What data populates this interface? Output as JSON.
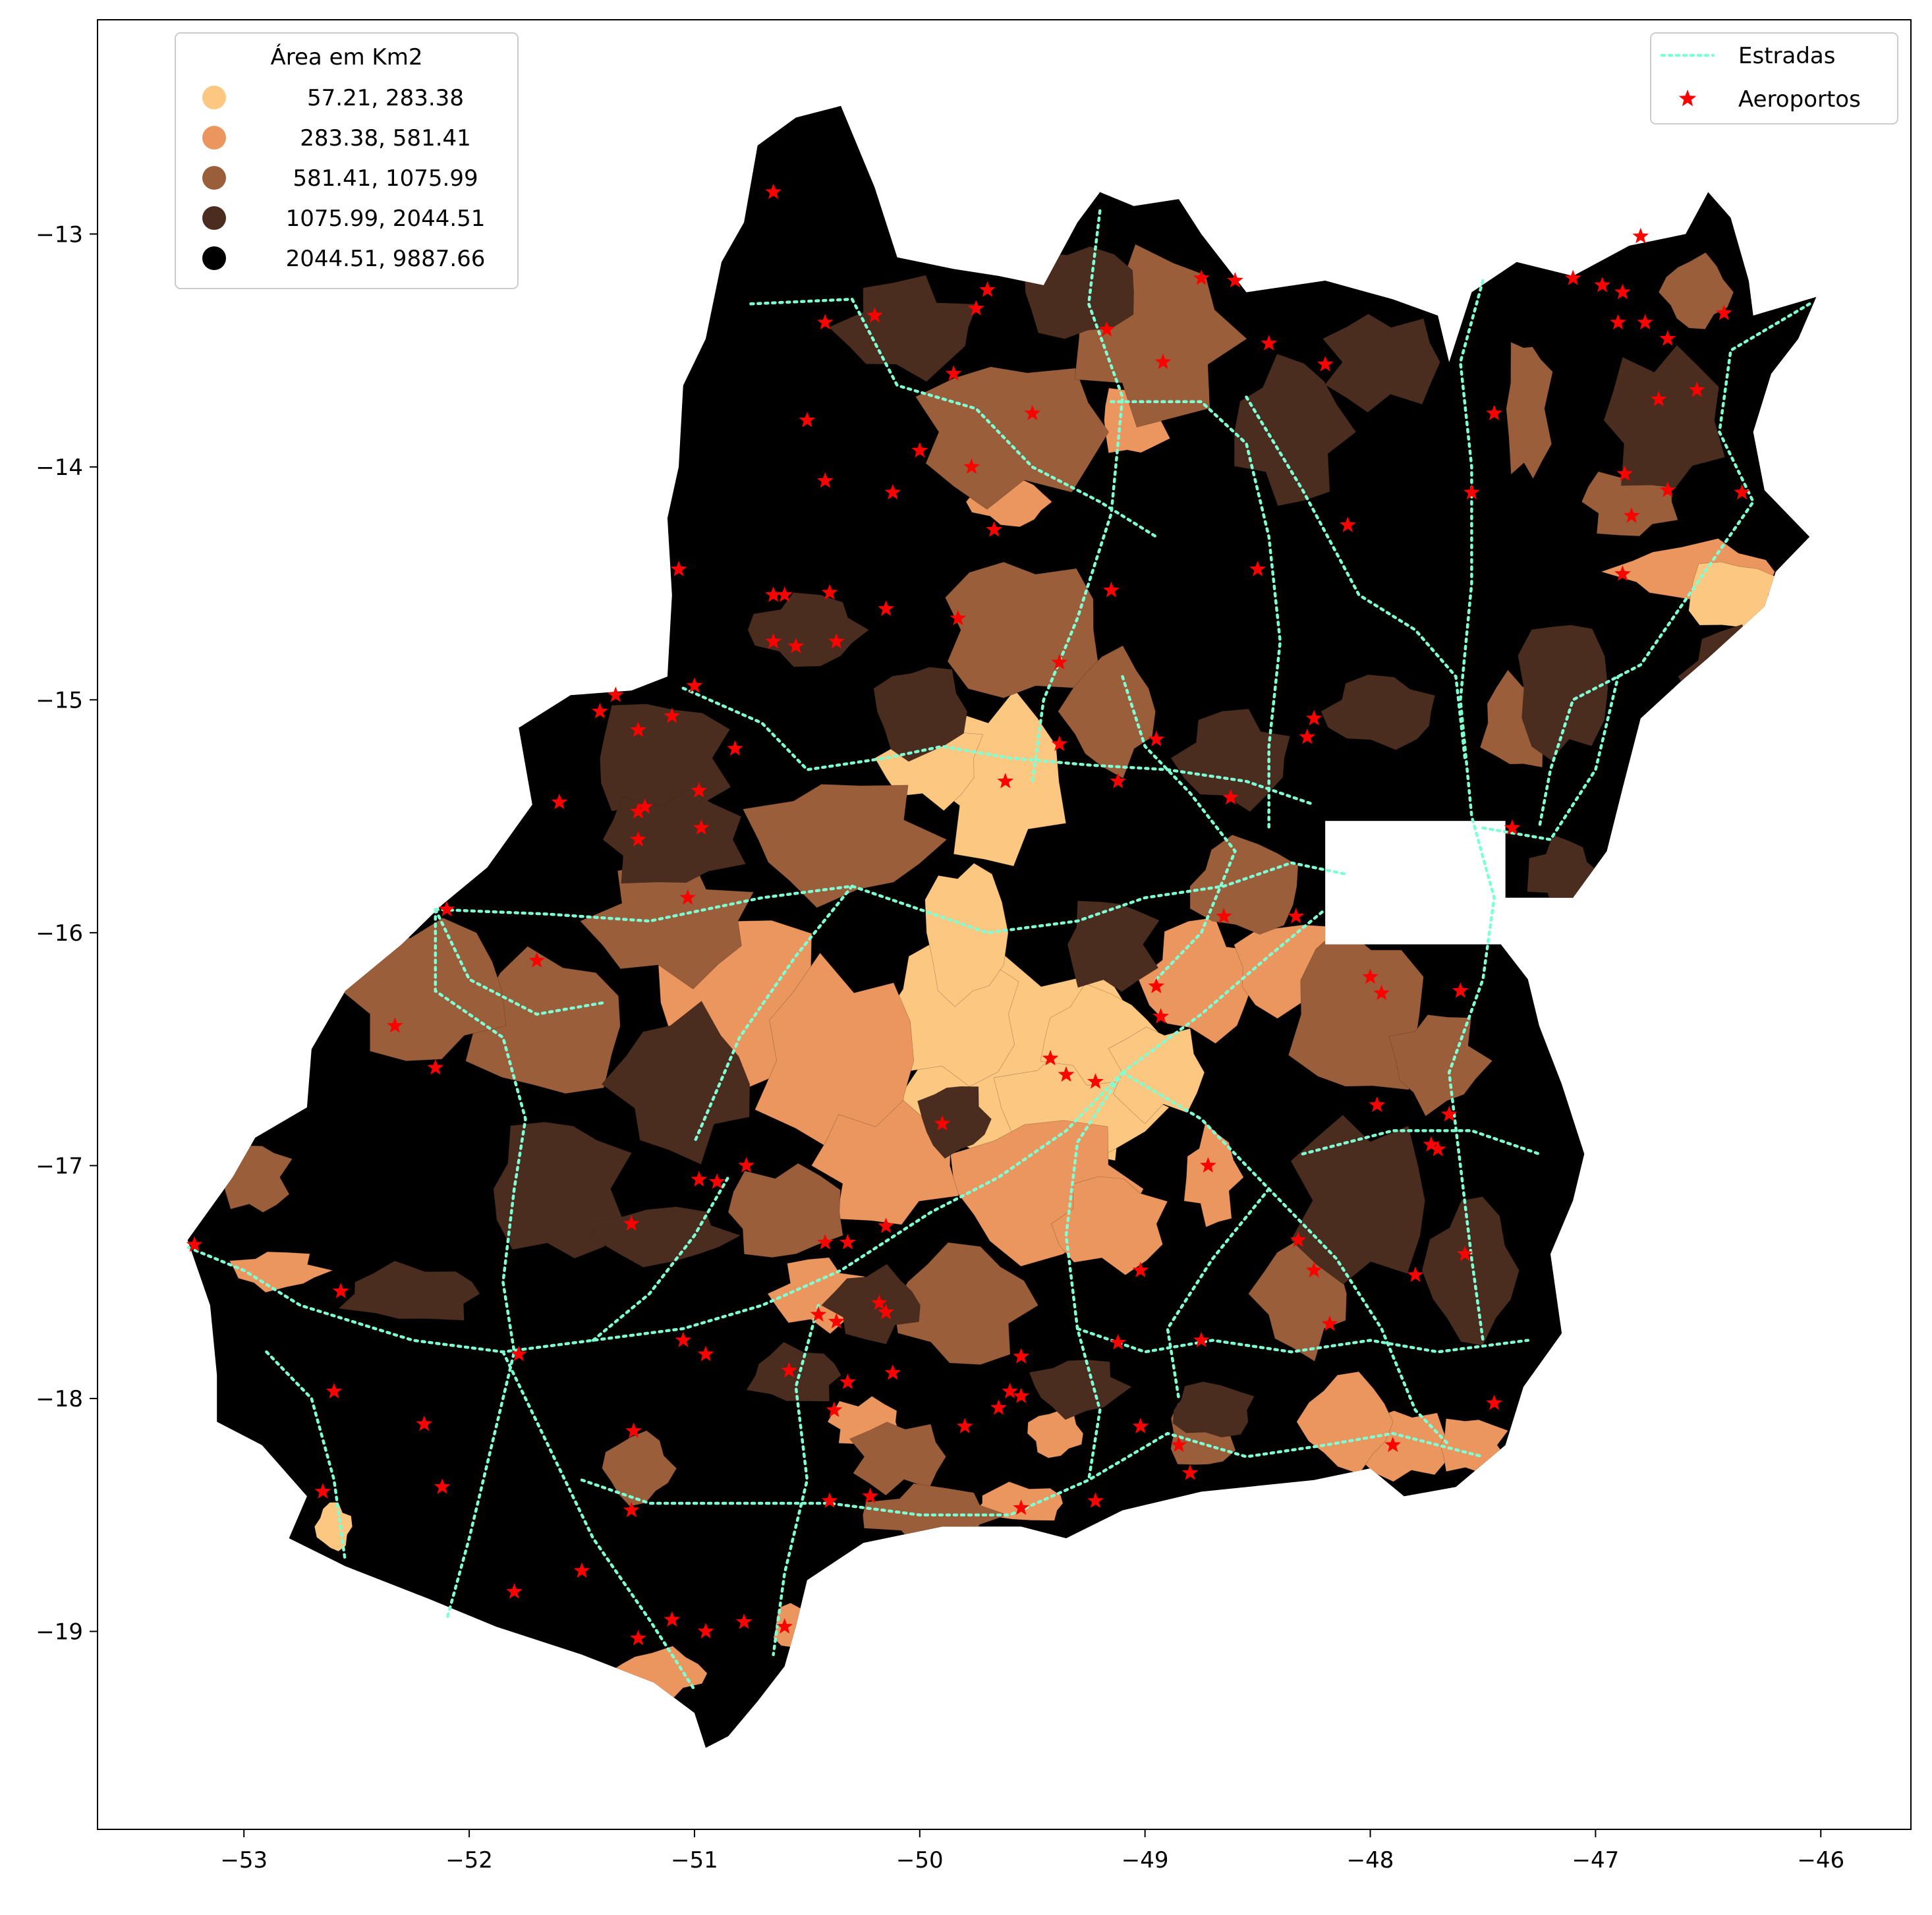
{
  "map": {
    "axes": {
      "x_ticks": [
        "−53",
        "−52",
        "−51",
        "−50",
        "−49",
        "−48",
        "−47",
        "−46"
      ],
      "y_ticks": [
        "−13",
        "−14",
        "−15",
        "−16",
        "−17",
        "−18",
        "−19"
      ],
      "xlim": [
        -53.65,
        -45.6
      ],
      "ylim": [
        -19.85,
        -12.08
      ]
    },
    "legend_area": {
      "title": "Área em Km2",
      "entries": [
        {
          "label": "57.21,  283.38",
          "color": "#fcc780"
        },
        {
          "label": "283.38,  581.41",
          "color": "#ec965f"
        },
        {
          "label": "581.41, 1075.99",
          "color": "#9a5e3a"
        },
        {
          "label": "1075.99, 2044.51",
          "color": "#4a2d1f"
        },
        {
          "label": "2044.51, 9887.66",
          "color": "#000000"
        }
      ]
    },
    "legend_layers": {
      "roads_label": "Estradas",
      "airports_label": "Aeroportos",
      "road_color": "#7fffd4",
      "airport_color": "#ff0000"
    },
    "airports": [
      [
        -50.65,
        -12.82
      ],
      [
        -50.42,
        -13.38
      ],
      [
        -50.2,
        -13.35
      ],
      [
        -49.75,
        -13.32
      ],
      [
        -49.7,
        -13.24
      ],
      [
        -49.85,
        -13.6
      ],
      [
        -50.5,
        -13.8
      ],
      [
        -50.0,
        -13.93
      ],
      [
        -49.77,
        -14.0
      ],
      [
        -50.42,
        -14.06
      ],
      [
        -50.12,
        -14.11
      ],
      [
        -49.5,
        -13.77
      ],
      [
        -49.17,
        -13.41
      ],
      [
        -48.92,
        -13.55
      ],
      [
        -48.75,
        -13.19
      ],
      [
        -48.6,
        -13.2
      ],
      [
        -48.45,
        -13.47
      ],
      [
        -48.2,
        -13.56
      ],
      [
        -49.67,
        -14.27
      ],
      [
        -48.1,
        -14.25
      ],
      [
        -48.5,
        -14.44
      ],
      [
        -49.15,
        -14.53
      ],
      [
        -51.07,
        -14.44
      ],
      [
        -50.6,
        -14.55
      ],
      [
        -50.65,
        -14.55
      ],
      [
        -50.4,
        -14.54
      ],
      [
        -50.15,
        -14.61
      ],
      [
        -49.83,
        -14.65
      ],
      [
        -50.65,
        -14.75
      ],
      [
        -50.55,
        -14.77
      ],
      [
        -50.37,
        -14.75
      ],
      [
        -49.38,
        -14.84
      ],
      [
        -51.35,
        -14.98
      ],
      [
        -51.42,
        -15.05
      ],
      [
        -51.0,
        -14.94
      ],
      [
        -51.25,
        -15.13
      ],
      [
        -51.1,
        -15.07
      ],
      [
        -51.6,
        -15.44
      ],
      [
        -50.82,
        -15.21
      ],
      [
        -49.38,
        -15.19
      ],
      [
        -48.95,
        -15.17
      ],
      [
        -48.28,
        -15.16
      ],
      [
        -48.25,
        -15.08
      ],
      [
        -49.62,
        -15.35
      ],
      [
        -49.12,
        -15.35
      ],
      [
        -48.62,
        -15.42
      ],
      [
        -47.37,
        -15.55
      ],
      [
        -51.22,
        -15.46
      ],
      [
        -51.25,
        -15.48
      ],
      [
        -51.25,
        -15.6
      ],
      [
        -50.98,
        -15.39
      ],
      [
        -50.97,
        -15.55
      ],
      [
        -51.03,
        -15.85
      ],
      [
        -52.1,
        -15.9
      ],
      [
        -51.7,
        -16.12
      ],
      [
        -48.65,
        -15.93
      ],
      [
        -48.33,
        -15.93
      ],
      [
        -47.55,
        -14.11
      ],
      [
        -47.45,
        -13.77
      ],
      [
        -47.1,
        -13.19
      ],
      [
        -46.97,
        -13.22
      ],
      [
        -46.88,
        -13.25
      ],
      [
        -46.9,
        -13.38
      ],
      [
        -46.78,
        -13.38
      ],
      [
        -46.68,
        -13.45
      ],
      [
        -46.8,
        -13.01
      ],
      [
        -46.43,
        -13.34
      ],
      [
        -46.55,
        -13.67
      ],
      [
        -46.72,
        -13.71
      ],
      [
        -46.87,
        -14.03
      ],
      [
        -46.68,
        -14.1
      ],
      [
        -46.84,
        -14.21
      ],
      [
        -46.88,
        -14.46
      ],
      [
        -46.35,
        -14.11
      ],
      [
        -48.95,
        -16.23
      ],
      [
        -48.93,
        -16.36
      ],
      [
        -48.0,
        -16.19
      ],
      [
        -47.95,
        -16.26
      ],
      [
        -47.6,
        -16.25
      ],
      [
        -52.33,
        -16.4
      ],
      [
        -52.15,
        -16.58
      ],
      [
        -49.42,
        -16.54
      ],
      [
        -49.35,
        -16.61
      ],
      [
        -49.22,
        -16.64
      ],
      [
        -48.72,
        -17.0
      ],
      [
        -47.97,
        -16.74
      ],
      [
        -47.65,
        -16.78
      ],
      [
        -47.73,
        -16.91
      ],
      [
        -47.7,
        -16.93
      ],
      [
        -49.9,
        -16.82
      ],
      [
        -50.98,
        -17.06
      ],
      [
        -50.9,
        -17.07
      ],
      [
        -50.77,
        -17.0
      ],
      [
        -51.28,
        -17.25
      ],
      [
        -50.42,
        -17.33
      ],
      [
        -50.32,
        -17.33
      ],
      [
        -50.15,
        -17.26
      ],
      [
        -53.22,
        -17.34
      ],
      [
        -48.32,
        -17.32
      ],
      [
        -48.25,
        -17.45
      ],
      [
        -47.8,
        -17.47
      ],
      [
        -47.58,
        -17.38
      ],
      [
        -49.02,
        -17.45
      ],
      [
        -52.57,
        -17.54
      ],
      [
        -50.18,
        -17.59
      ],
      [
        -50.45,
        -17.64
      ],
      [
        -50.37,
        -17.67
      ],
      [
        -50.15,
        -17.63
      ],
      [
        -51.05,
        -17.75
      ],
      [
        -50.95,
        -17.81
      ],
      [
        -51.78,
        -17.81
      ],
      [
        -49.55,
        -17.82
      ],
      [
        -49.12,
        -17.76
      ],
      [
        -48.75,
        -17.75
      ],
      [
        -48.18,
        -17.68
      ],
      [
        -52.6,
        -17.97
      ],
      [
        -50.58,
        -17.88
      ],
      [
        -50.32,
        -17.93
      ],
      [
        -50.12,
        -17.89
      ],
      [
        -49.6,
        -17.97
      ],
      [
        -49.55,
        -17.99
      ],
      [
        -49.8,
        -18.12
      ],
      [
        -49.65,
        -18.04
      ],
      [
        -49.02,
        -18.12
      ],
      [
        -50.38,
        -18.05
      ],
      [
        -52.2,
        -18.11
      ],
      [
        -51.27,
        -18.14
      ],
      [
        -48.85,
        -18.2
      ],
      [
        -48.8,
        -18.32
      ],
      [
        -47.9,
        -18.2
      ],
      [
        -47.45,
        -18.02
      ],
      [
        -52.65,
        -18.4
      ],
      [
        -52.12,
        -18.38
      ],
      [
        -51.28,
        -18.48
      ],
      [
        -50.4,
        -18.44
      ],
      [
        -50.22,
        -18.42
      ],
      [
        -49.55,
        -18.47
      ],
      [
        -49.22,
        -18.44
      ],
      [
        -51.5,
        -18.74
      ],
      [
        -51.8,
        -18.83
      ],
      [
        -51.1,
        -18.95
      ],
      [
        -51.25,
        -19.03
      ],
      [
        -50.95,
        -19.0
      ],
      [
        -50.78,
        -18.96
      ],
      [
        -50.6,
        -18.98
      ]
    ]
  }
}
